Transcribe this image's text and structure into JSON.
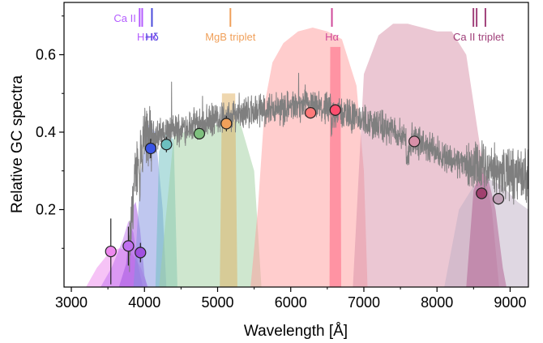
{
  "chart_data": {
    "type": "scatter",
    "title": "",
    "xlabel": "Wavelength [Å]",
    "ylabel": "Relative GC spectra",
    "xlim": [
      2900,
      9250
    ],
    "ylim": [
      0,
      0.735
    ],
    "x_ticks": [
      3000,
      4000,
      5000,
      6000,
      7000,
      8000,
      9000
    ],
    "y_ticks": [
      0.2,
      0.4,
      0.6
    ],
    "x_tick_labels": [
      "3000",
      "4000",
      "5000",
      "6000",
      "7000",
      "8000",
      "9000"
    ],
    "y_tick_labels": [
      "0.2",
      "0.4",
      "0.6"
    ],
    "grid": false,
    "legend": "none",
    "spectrum": {
      "color": "#7f7f7f",
      "start": 3780,
      "end": 9250,
      "knots": [
        [
          3780,
          0.05
        ],
        [
          3840,
          0.22
        ],
        [
          3900,
          0.32
        ],
        [
          3960,
          0.38
        ],
        [
          4050,
          0.385
        ],
        [
          4150,
          0.39
        ],
        [
          4300,
          0.4
        ],
        [
          4500,
          0.41
        ],
        [
          4700,
          0.42
        ],
        [
          4900,
          0.43
        ],
        [
          5100,
          0.44
        ],
        [
          5300,
          0.45
        ],
        [
          5500,
          0.455
        ],
        [
          5700,
          0.46
        ],
        [
          6000,
          0.465
        ],
        [
          6300,
          0.465
        ],
        [
          6500,
          0.46
        ],
        [
          6700,
          0.45
        ],
        [
          7000,
          0.43
        ],
        [
          7300,
          0.41
        ],
        [
          7600,
          0.385
        ],
        [
          7900,
          0.36
        ],
        [
          8200,
          0.33
        ],
        [
          8500,
          0.31
        ],
        [
          8800,
          0.3
        ],
        [
          9000,
          0.29
        ],
        [
          9250,
          0.285
        ]
      ]
    },
    "spectral_lines": [
      {
        "label": "Ca II",
        "label2": "H+K",
        "color": "#b45cff",
        "wavelengths": [
          3934,
          3969
        ]
      },
      {
        "label": "Hδ",
        "color": "#4b4bdc",
        "wavelengths": [
          4102
        ]
      },
      {
        "label": "MgB triplet",
        "color": "#f0a05a",
        "wavelengths": [
          5175
        ]
      },
      {
        "label": "Hα",
        "color": "#d04a9a",
        "wavelengths": [
          6563
        ]
      },
      {
        "label": "Ca II triplet",
        "color": "#a0407a",
        "wavelengths": [
          8498,
          8542,
          8662
        ]
      }
    ],
    "filters": [
      {
        "color": "#ee88ee",
        "peak": 0.1,
        "curve": [
          [
            3200,
            0
          ],
          [
            3350,
            0.05
          ],
          [
            3500,
            0.085
          ],
          [
            3650,
            0.1
          ],
          [
            3800,
            0.095
          ],
          [
            3950,
            0.05
          ],
          [
            4050,
            0
          ]
        ]
      },
      {
        "color": "#c070f0",
        "peak": 0.17,
        "curve": [
          [
            3400,
            0
          ],
          [
            3550,
            0.05
          ],
          [
            3700,
            0.12
          ],
          [
            3780,
            0.17
          ],
          [
            3850,
            0.14
          ],
          [
            3920,
            0.05
          ],
          [
            3980,
            0
          ]
        ]
      },
      {
        "color": "#a050e0",
        "peak": 0.22,
        "curve": [
          [
            3650,
            0
          ],
          [
            3750,
            0.06
          ],
          [
            3820,
            0.2
          ],
          [
            3880,
            0.22
          ],
          [
            3940,
            0.15
          ],
          [
            4000,
            0.03
          ],
          [
            4040,
            0
          ]
        ]
      },
      {
        "color": "#8090e0",
        "peak": 0.42,
        "curve": [
          [
            3850,
            0
          ],
          [
            3950,
            0.3
          ],
          [
            4050,
            0.42
          ],
          [
            4150,
            0.4
          ],
          [
            4250,
            0.2
          ],
          [
            4300,
            0
          ]
        ]
      },
      {
        "color": "#6cc0c0",
        "peak": 0.4,
        "curve": [
          [
            4150,
            0
          ],
          [
            4200,
            0.35
          ],
          [
            4300,
            0.4
          ],
          [
            4400,
            0.38
          ],
          [
            4450,
            0
          ]
        ]
      },
      {
        "color": "#9fcf9f",
        "peak": 0.42,
        "curve": [
          [
            4200,
            0
          ],
          [
            4400,
            0.39
          ],
          [
            4700,
            0.41
          ],
          [
            5000,
            0.42
          ],
          [
            5300,
            0.43
          ],
          [
            5500,
            0.3
          ],
          [
            5600,
            0
          ]
        ]
      },
      {
        "color": "#e0b060",
        "peak": 0.5,
        "curve": [
          [
            5030,
            0
          ],
          [
            5060,
            0.5
          ],
          [
            5150,
            0.5
          ],
          [
            5240,
            0.5
          ],
          [
            5270,
            0
          ]
        ]
      },
      {
        "color": "#ff9c9c",
        "peak": 0.67,
        "curve": [
          [
            5450,
            0
          ],
          [
            5550,
            0.2
          ],
          [
            5650,
            0.48
          ],
          [
            5750,
            0.58
          ],
          [
            5900,
            0.63
          ],
          [
            6100,
            0.66
          ],
          [
            6300,
            0.67
          ],
          [
            6500,
            0.66
          ],
          [
            6700,
            0.64
          ],
          [
            6900,
            0.52
          ],
          [
            7000,
            0.3
          ],
          [
            7050,
            0
          ]
        ]
      },
      {
        "color": "#ff5a7a",
        "peak": 0.62,
        "curve": [
          [
            6530,
            0
          ],
          [
            6540,
            0.62
          ],
          [
            6680,
            0.62
          ],
          [
            6690,
            0
          ]
        ]
      },
      {
        "color": "#d890a8",
        "peak": 0.68,
        "curve": [
          [
            6850,
            0
          ],
          [
            7000,
            0.55
          ],
          [
            7200,
            0.65
          ],
          [
            7400,
            0.68
          ],
          [
            7600,
            0.68
          ],
          [
            7800,
            0.67
          ],
          [
            8000,
            0.66
          ],
          [
            8200,
            0.66
          ],
          [
            8400,
            0.6
          ],
          [
            8600,
            0.35
          ],
          [
            8750,
            0.2
          ],
          [
            8850,
            0
          ]
        ]
      },
      {
        "color": "#bfb0c6",
        "peak": 0.28,
        "curve": [
          [
            8100,
            0
          ],
          [
            8300,
            0.2
          ],
          [
            8500,
            0.26
          ],
          [
            8700,
            0.28
          ],
          [
            8900,
            0.26
          ],
          [
            9100,
            0.22
          ],
          [
            9250,
            0.2
          ]
        ]
      },
      {
        "color": "#b05c8e",
        "peak": 0.3,
        "curve": [
          [
            8400,
            0
          ],
          [
            8500,
            0.25
          ],
          [
            8600,
            0.3
          ],
          [
            8700,
            0.28
          ],
          [
            8800,
            0.2
          ],
          [
            8900,
            0.05
          ],
          [
            8950,
            0
          ]
        ]
      }
    ],
    "points": [
      {
        "x": 3540,
        "y": 0.092,
        "err": 0.085,
        "color": "#ee88ee"
      },
      {
        "x": 3780,
        "y": 0.106,
        "err": 0.05,
        "color": "#c070f0"
      },
      {
        "x": 3945,
        "y": 0.089,
        "err": 0.025,
        "color": "#a050e0"
      },
      {
        "x": 4085,
        "y": 0.358,
        "err": 0.025,
        "color": "#3a55e6"
      },
      {
        "x": 4300,
        "y": 0.368,
        "err": 0.02,
        "color": "#6cc0c0"
      },
      {
        "x": 4750,
        "y": 0.396,
        "err": 0.01,
        "color": "#7ec07e"
      },
      {
        "x": 5120,
        "y": 0.422,
        "err": 0.02,
        "color": "#f0a05a"
      },
      {
        "x": 6270,
        "y": 0.45,
        "err": 0.01,
        "color": "#ff7a7a"
      },
      {
        "x": 6610,
        "y": 0.457,
        "err": 0.015,
        "color": "#ff4f6f"
      },
      {
        "x": 7690,
        "y": 0.376,
        "err": 0.01,
        "color": "#d890a8"
      },
      {
        "x": 8610,
        "y": 0.242,
        "err": 0.015,
        "color": "#a0406e"
      },
      {
        "x": 8840,
        "y": 0.228,
        "err": 0.015,
        "color": "#bfa0b6"
      }
    ]
  }
}
